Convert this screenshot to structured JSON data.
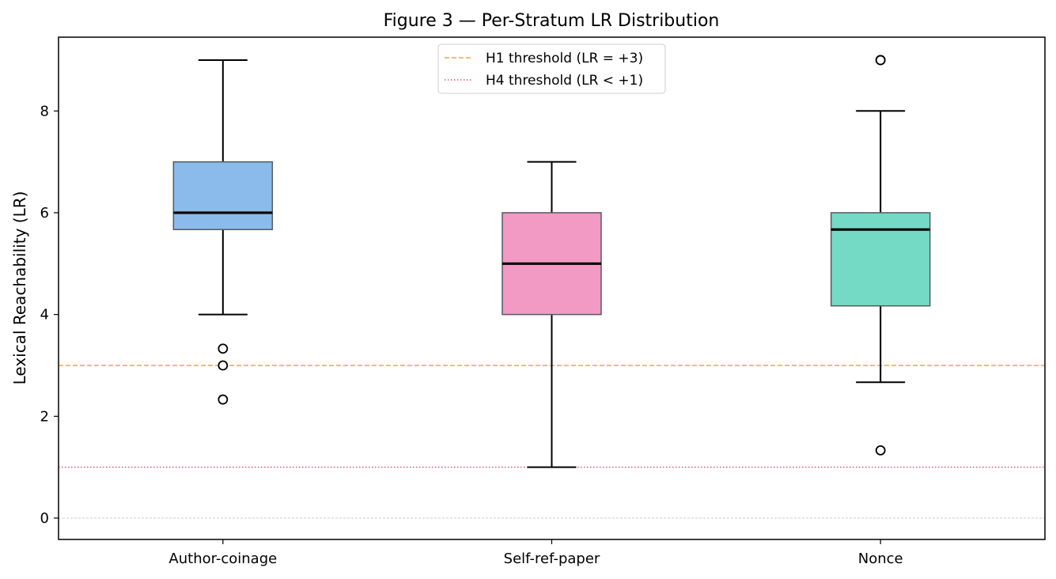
{
  "chart_data": {
    "type": "box",
    "title": "Figure 3 — Per-Stratum LR Distribution",
    "xlabel": "",
    "ylabel": "Lexical Reachability (LR)",
    "ylim": [
      -0.42,
      9.45
    ],
    "yticks": [
      0,
      2,
      4,
      6,
      8
    ],
    "ytick_labels": [
      "0",
      "2",
      "4",
      "6",
      "8"
    ],
    "grid_y_zero": true,
    "legend_position": "upper center",
    "categories": [
      "Author-coinage",
      "Self-ref-paper",
      "Nonce"
    ],
    "boxes": [
      {
        "name": "Author-coinage",
        "color": "#8bbbea",
        "whisker_low": 4.0,
        "q1": 5.67,
        "median": 6.0,
        "q3": 7.0,
        "whisker_high": 9.0,
        "outliers": [
          3.33,
          3.0,
          2.33
        ]
      },
      {
        "name": "Self-ref-paper",
        "color": "#f29ac4",
        "whisker_low": 1.0,
        "q1": 4.0,
        "median": 5.0,
        "q3": 6.0,
        "whisker_high": 7.0,
        "outliers": []
      },
      {
        "name": "Nonce",
        "color": "#74dac6",
        "whisker_low": 2.67,
        "q1": 4.17,
        "median": 5.67,
        "q3": 6.0,
        "whisker_high": 8.0,
        "outliers": [
          9.0,
          9.0,
          1.33
        ]
      }
    ],
    "reference_lines": [
      {
        "label": "H1 threshold (LR = +3)",
        "y": 3,
        "color": "#f5a441",
        "style": "dashed"
      },
      {
        "label": "H4 threshold (LR < +1)",
        "y": 1,
        "color": "#e0577a",
        "style": "dotted"
      }
    ]
  }
}
